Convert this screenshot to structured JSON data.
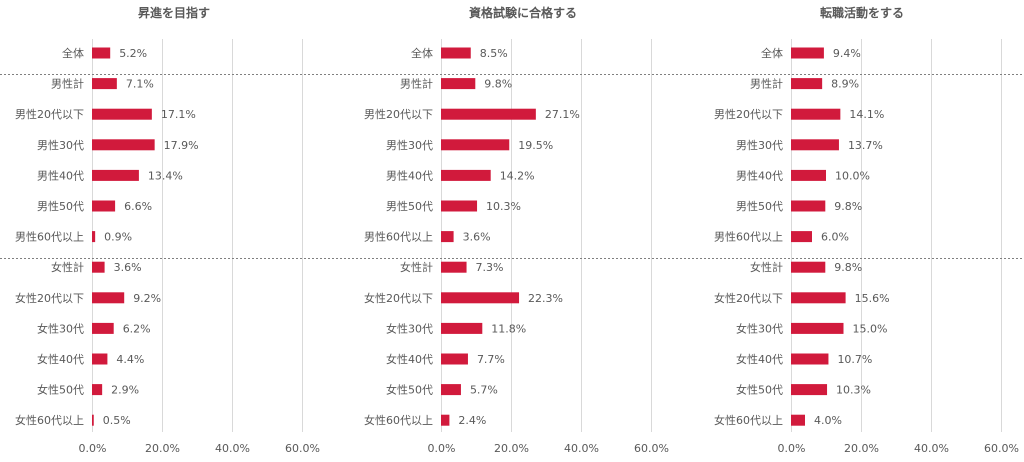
{
  "colors": {
    "bar": "#d11a3c",
    "grid": "#d9d9d9",
    "separator": "#7f7f7f",
    "text": "#595959"
  },
  "chart_data": [
    {
      "type": "bar",
      "orientation": "horizontal",
      "title": "昇進を目指す",
      "categories": [
        "全体",
        "男性計",
        "男性20代以下",
        "男性30代",
        "男性40代",
        "男性50代",
        "男性60代以上",
        "女性計",
        "女性20代以下",
        "女性30代",
        "女性40代",
        "女性50代",
        "女性60代以上"
      ],
      "values": [
        5.2,
        7.1,
        17.1,
        17.9,
        13.4,
        6.6,
        0.9,
        3.6,
        9.2,
        6.2,
        4.4,
        2.9,
        0.5
      ],
      "value_labels": [
        "5.2%",
        "7.1%",
        "17.1%",
        "17.9%",
        "13.4%",
        "6.6%",
        "0.9%",
        "3.6%",
        "9.2%",
        "6.2%",
        "4.4%",
        "2.9%",
        "0.5%"
      ],
      "xlim": [
        0,
        60
      ],
      "x_ticks": [
        "0.0%",
        "20.0%",
        "40.0%",
        "60.0%"
      ],
      "grid": true,
      "xlabel": "",
      "ylabel": ""
    },
    {
      "type": "bar",
      "orientation": "horizontal",
      "title": "資格試験に合格する",
      "categories": [
        "全体",
        "男性計",
        "男性20代以下",
        "男性30代",
        "男性40代",
        "男性50代",
        "男性60代以上",
        "女性計",
        "女性20代以下",
        "女性30代",
        "女性40代",
        "女性50代",
        "女性60代以上"
      ],
      "values": [
        8.5,
        9.8,
        27.1,
        19.5,
        14.2,
        10.3,
        3.6,
        7.3,
        22.3,
        11.8,
        7.7,
        5.7,
        2.4
      ],
      "value_labels": [
        "8.5%",
        "9.8%",
        "27.1%",
        "19.5%",
        "14.2%",
        "10.3%",
        "3.6%",
        "7.3%",
        "22.3%",
        "11.8%",
        "7.7%",
        "5.7%",
        "2.4%"
      ],
      "xlim": [
        0,
        60
      ],
      "x_ticks": [
        "0.0%",
        "20.0%",
        "40.0%",
        "60.0%"
      ],
      "grid": true,
      "xlabel": "",
      "ylabel": ""
    },
    {
      "type": "bar",
      "orientation": "horizontal",
      "title": "転職活動をする",
      "categories": [
        "全体",
        "男性計",
        "男性20代以下",
        "男性30代",
        "男性40代",
        "男性50代",
        "男性60代以上",
        "女性計",
        "女性20代以下",
        "女性30代",
        "女性40代",
        "女性50代",
        "女性60代以上"
      ],
      "values": [
        9.4,
        8.9,
        14.1,
        13.7,
        10.0,
        9.8,
        6.0,
        9.8,
        15.6,
        15.0,
        10.7,
        10.3,
        4.0
      ],
      "value_labels": [
        "9.4%",
        "8.9%",
        "14.1%",
        "13.7%",
        "10.0%",
        "9.8%",
        "6.0%",
        "9.8%",
        "15.6%",
        "15.0%",
        "10.7%",
        "10.3%",
        "4.0%"
      ],
      "xlim": [
        0,
        60
      ],
      "x_ticks": [
        "0.0%",
        "20.0%",
        "40.0%",
        "60.0%"
      ],
      "grid": true,
      "xlabel": "",
      "ylabel": ""
    }
  ]
}
